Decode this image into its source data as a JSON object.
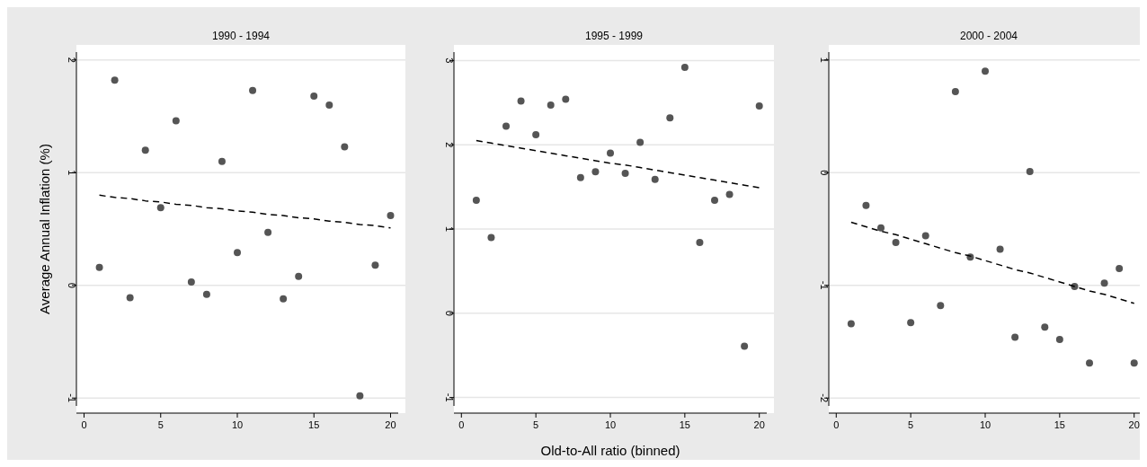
{
  "chart_data": [
    {
      "type": "scatter",
      "title": "1990 - 1994",
      "ylabel": "Average Annual Inflation (%)",
      "x": [
        1,
        2,
        3,
        4,
        5,
        6,
        7,
        8,
        9,
        10,
        11,
        12,
        13,
        14,
        15,
        16,
        17,
        18,
        19,
        20
      ],
      "xlim": [
        -0.5,
        20.5
      ],
      "xticks": [
        0,
        5,
        10,
        15,
        20
      ],
      "ylim": [
        -1.07,
        2.07
      ],
      "yticks": [
        -1,
        0,
        1,
        2
      ],
      "grid": "y",
      "series": [
        {
          "color": "#555555",
          "marker": "circle",
          "values": [
            0.16,
            1.82,
            -0.11,
            1.2,
            0.69,
            1.46,
            0.03,
            -0.08,
            1.1,
            0.29,
            1.73,
            0.47,
            -0.12,
            0.08,
            1.68,
            1.6,
            1.23,
            -0.98,
            0.18,
            0.62
          ]
        },
        {
          "type": "line",
          "color": "#000000",
          "line_style": "dashed",
          "values": [
            0.8,
            0.78,
            0.77,
            0.75,
            0.74,
            0.72,
            0.71,
            0.69,
            0.68,
            0.66,
            0.65,
            0.63,
            0.62,
            0.6,
            0.59,
            0.57,
            0.56,
            0.54,
            0.53,
            0.51
          ]
        }
      ]
    },
    {
      "type": "scatter",
      "title": "1995 - 1999",
      "xlabel": "Old-to-All ratio (binned)",
      "x": [
        1,
        2,
        3,
        4,
        5,
        6,
        7,
        8,
        9,
        10,
        11,
        12,
        13,
        14,
        15,
        16,
        17,
        18,
        19,
        20
      ],
      "xlim": [
        -0.5,
        20.5
      ],
      "xticks": [
        0,
        5,
        10,
        15,
        20
      ],
      "ylim": [
        -1.1,
        3.1
      ],
      "yticks": [
        -1,
        0,
        1,
        2,
        3
      ],
      "grid": "y",
      "series": [
        {
          "color": "#555555",
          "marker": "circle",
          "values": [
            1.34,
            0.9,
            2.22,
            2.52,
            2.12,
            2.47,
            2.54,
            1.61,
            1.68,
            1.9,
            1.66,
            2.03,
            1.59,
            2.32,
            2.92,
            0.84,
            1.34,
            1.41,
            -0.39,
            2.46
          ]
        },
        {
          "type": "line",
          "color": "#000000",
          "line_style": "dashed",
          "values": [
            2.05,
            2.02,
            1.99,
            1.96,
            1.93,
            1.9,
            1.87,
            1.84,
            1.81,
            1.78,
            1.76,
            1.73,
            1.7,
            1.67,
            1.64,
            1.61,
            1.58,
            1.55,
            1.52,
            1.49
          ]
        }
      ]
    },
    {
      "type": "scatter",
      "title": "2000 - 2004",
      "x": [
        1,
        2,
        3,
        4,
        5,
        6,
        7,
        8,
        9,
        10,
        11,
        12,
        13,
        14,
        15,
        16,
        17,
        18,
        19,
        20
      ],
      "xlim": [
        -0.5,
        20.5
      ],
      "xticks": [
        0,
        5,
        10,
        15,
        20
      ],
      "ylim": [
        -2.07,
        1.07
      ],
      "yticks": [
        -2,
        -1,
        0,
        1
      ],
      "grid": "y",
      "series": [
        {
          "color": "#555555",
          "marker": "circle",
          "values": [
            -1.34,
            -0.29,
            -0.49,
            -0.62,
            -1.33,
            -0.56,
            -1.18,
            0.72,
            -0.75,
            0.9,
            -0.68,
            -1.46,
            0.01,
            -1.37,
            -1.48,
            -1.01,
            -1.69,
            -0.98,
            -0.85,
            -1.69
          ]
        },
        {
          "type": "line",
          "color": "#000000",
          "line_style": "dashed",
          "values": [
            -0.44,
            -0.48,
            -0.52,
            -0.55,
            -0.59,
            -0.63,
            -0.67,
            -0.71,
            -0.74,
            -0.78,
            -0.82,
            -0.86,
            -0.89,
            -0.93,
            -0.97,
            -1.01,
            -1.05,
            -1.08,
            -1.12,
            -1.16
          ]
        }
      ]
    }
  ]
}
